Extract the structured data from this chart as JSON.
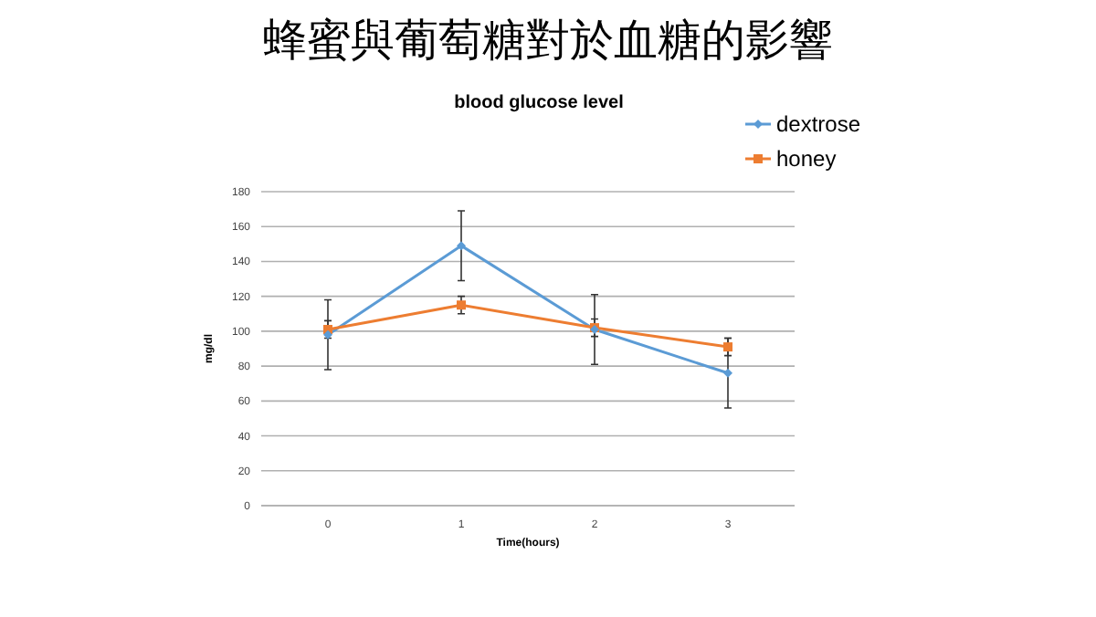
{
  "chart_data": {
    "type": "line",
    "title": "蜂蜜與葡萄糖對於血糖的影響",
    "subtitle": "blood glucose level",
    "xlabel": "Time(hours)",
    "ylabel": "mg/dl",
    "categories": [
      "0",
      "1",
      "2",
      "3"
    ],
    "series": [
      {
        "name": "dextrose",
        "color": "#5b9bd5",
        "values": [
          98,
          149,
          101,
          76
        ],
        "errors": [
          20,
          20,
          20,
          20
        ],
        "marker": "diamond"
      },
      {
        "name": "honey",
        "color": "#ed7d31",
        "values": [
          101,
          115,
          102,
          91
        ],
        "errors": [
          5,
          5,
          5,
          5
        ],
        "marker": "square"
      }
    ],
    "ylim": [
      0,
      180
    ],
    "yticks": [
      0,
      20,
      40,
      60,
      80,
      100,
      120,
      140,
      160,
      180
    ],
    "grid": "y",
    "legend": "top right"
  }
}
